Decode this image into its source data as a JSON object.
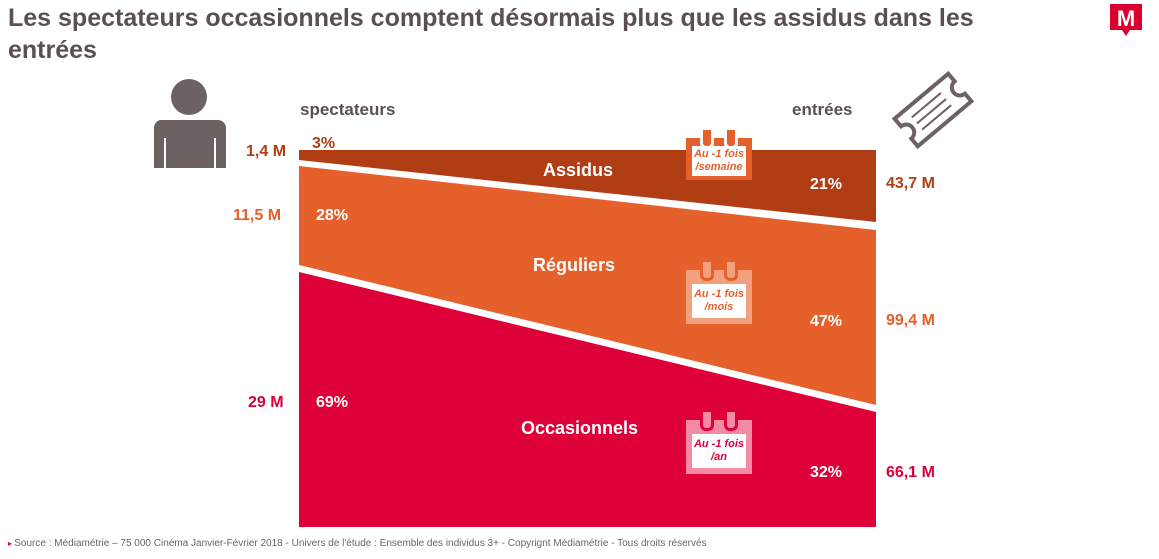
{
  "title": "Les spectateurs occasionnels comptent désormais plus que les assidus dans les entrées",
  "logo": "M",
  "source": "Source : Médiamétrie – 75 000 Cinéma Janvier-Février 2018 - Univers de l'étude : Ensemble des individus 3+ - Copyrignt Médiamétrie - Tous droits réservés",
  "colors": {
    "assidus": "#b03d14",
    "reguliers": "#e5602a",
    "occasionnels": "#de0038",
    "text": "#5a5050"
  },
  "chart_data": {
    "type": "area",
    "left_label": "spectateurs",
    "right_label": "entrées",
    "series": [
      {
        "name": "Assidus",
        "frequency": "Au -1 fois /semaine",
        "freq_line1": "Au -1 fois",
        "freq_line2": "/semaine",
        "spectateurs": "1,4 M",
        "spectateurs_pct": "3%",
        "entrees": "43,7 M",
        "entrees_pct": "21%",
        "spect_pct_value": 3,
        "entrees_pct_value": 21
      },
      {
        "name": "Réguliers",
        "frequency": "Au -1 fois /mois",
        "freq_line1": "Au -1 fois",
        "freq_line2": "/mois",
        "spectateurs": "11,5 M",
        "spectateurs_pct": "28%",
        "entrees": "99,4 M",
        "entrees_pct": "47%",
        "spect_pct_value": 28,
        "entrees_pct_value": 47
      },
      {
        "name": "Occasionnels",
        "frequency": "Au -1 fois /an",
        "freq_line1": "Au -1 fois",
        "freq_line2": "/an",
        "spectateurs": "29 M",
        "spectateurs_pct": "69%",
        "entrees": "66,1 M",
        "entrees_pct": "32%",
        "spect_pct_value": 69,
        "entrees_pct_value": 32
      }
    ]
  }
}
